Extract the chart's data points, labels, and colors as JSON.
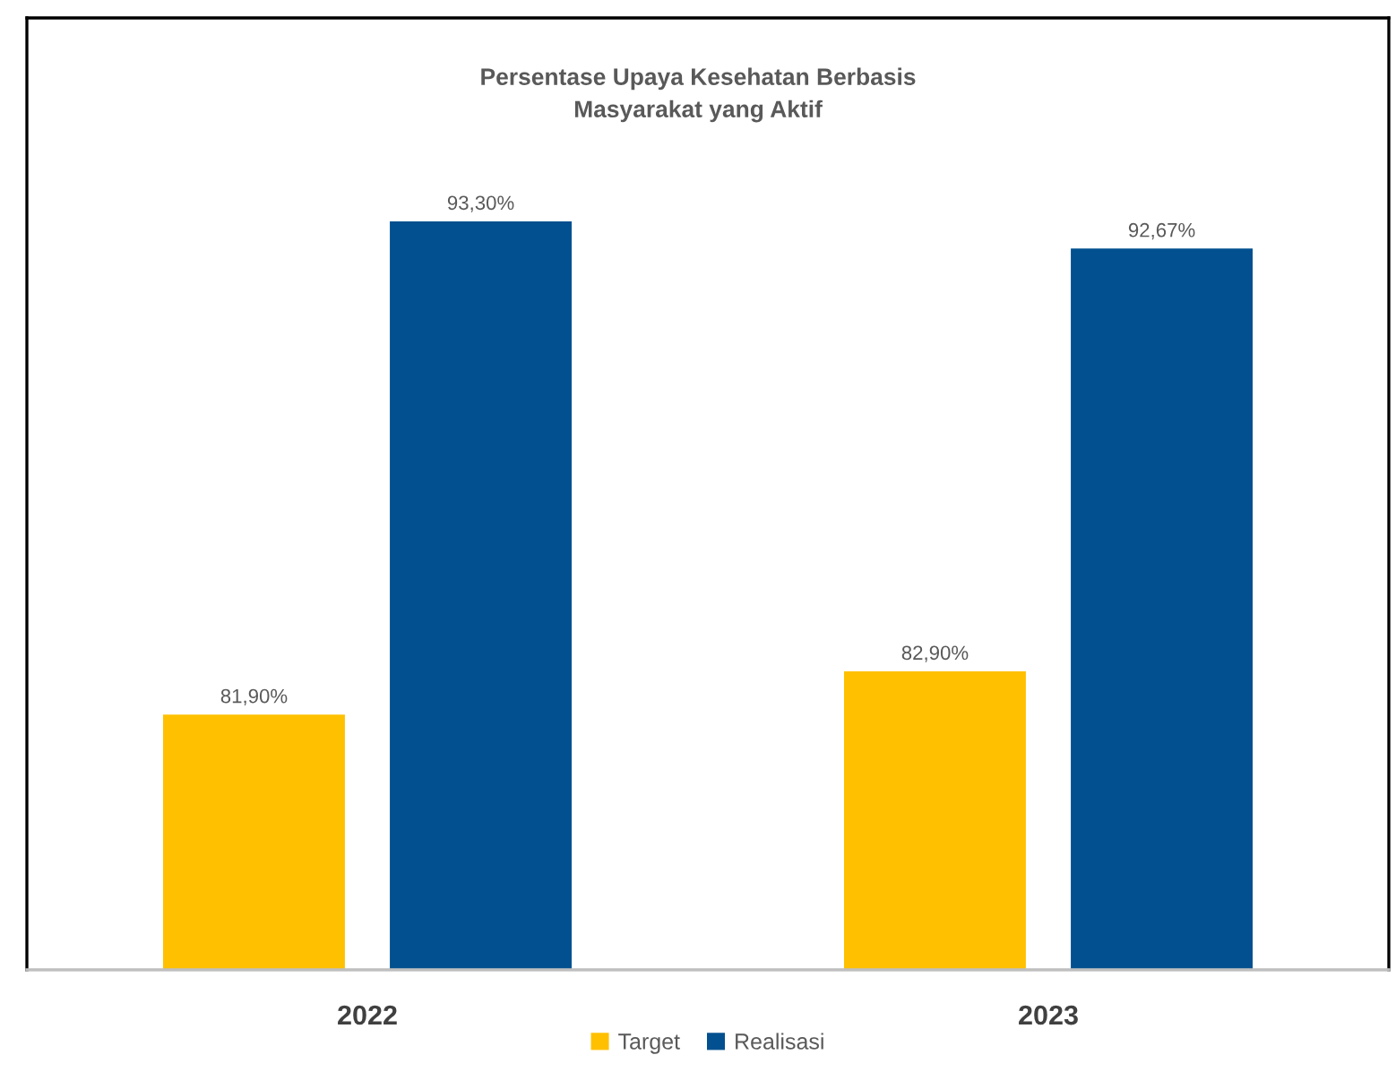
{
  "chart_data": {
    "type": "bar",
    "title": "Persentase Upaya Kesehatan Berbasis\nMasyarakat yang Aktif",
    "categories": [
      "2022",
      "2023"
    ],
    "series": [
      {
        "name": "Target",
        "color": "#ffc000",
        "values": [
          81.9,
          82.9
        ],
        "value_labels": [
          "81,90%",
          "82,90%"
        ]
      },
      {
        "name": "Realisasi",
        "color": "#02508f",
        "values": [
          93.3,
          92.67
        ],
        "value_labels": [
          "93,30%",
          "92,67%"
        ]
      }
    ],
    "ylim": [
      76,
      98
    ],
    "legend": "bottom",
    "grid": false
  }
}
